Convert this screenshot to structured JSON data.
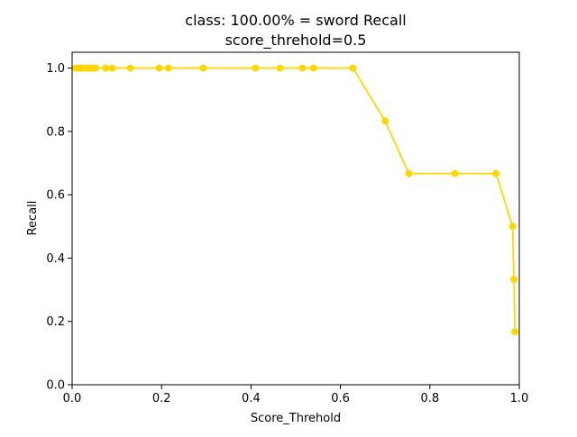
{
  "chart_data": {
    "type": "line",
    "title_line1": "class: 100.00% = sword Recall",
    "title_line2": "score_threhold=0.5",
    "xlabel": "Score_Threhold",
    "ylabel": "Recall",
    "xlim": [
      0.0,
      1.0
    ],
    "ylim": [
      0.0,
      1.05
    ],
    "xticks": [
      0.0,
      0.2,
      0.4,
      0.6,
      0.8,
      1.0
    ],
    "yticks": [
      0.0,
      0.2,
      0.4,
      0.6,
      0.8,
      1.0
    ],
    "xtick_labels": [
      "0.0",
      "0.2",
      "0.4",
      "0.6",
      "0.8",
      "1.0"
    ],
    "ytick_labels": [
      "0.0",
      "0.2",
      "0.4",
      "0.6",
      "0.8",
      "1.0"
    ],
    "grid": false,
    "series": [
      {
        "color": "#ffd700",
        "marker": "circle",
        "x": [
          0.008,
          0.015,
          0.022,
          0.03,
          0.037,
          0.045,
          0.052,
          0.075,
          0.09,
          0.13,
          0.195,
          0.215,
          0.293,
          0.41,
          0.465,
          0.515,
          0.54,
          0.628,
          0.7,
          0.753,
          0.856,
          0.948,
          0.985,
          0.988,
          0.99
        ],
        "y": [
          1.0,
          1.0,
          1.0,
          1.0,
          1.0,
          1.0,
          1.0,
          1.0,
          1.0,
          1.0,
          1.0,
          1.0,
          1.0,
          1.0,
          1.0,
          1.0,
          1.0,
          1.0,
          0.833,
          0.667,
          0.667,
          0.667,
          0.5,
          0.333,
          0.167
        ]
      }
    ]
  }
}
